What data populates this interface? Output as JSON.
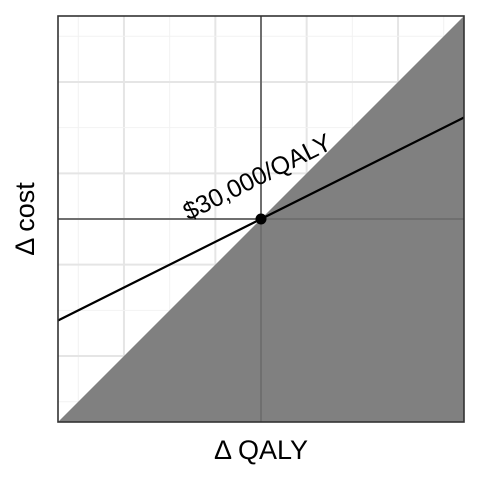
{
  "chart_data": {
    "type": "line",
    "title": "",
    "xlabel": "Δ QALY",
    "ylabel": "Δ cost",
    "xlim": [
      -1,
      1
    ],
    "ylim": [
      -1,
      1
    ],
    "grid": true,
    "shaded_region": {
      "name": "",
      "boundary": [
        {
          "x": -1,
          "y": -1
        },
        {
          "x": 1,
          "y": 1
        }
      ],
      "fill": "#808080"
    },
    "series": [
      {
        "name": "",
        "type": "line",
        "x": [
          -1,
          1
        ],
        "y": [
          -0.5,
          0.5
        ],
        "color": "#000000"
      }
    ],
    "point": {
      "x": 0,
      "y": 0,
      "color": "#000000"
    },
    "annotations": [
      {
        "text": "$30,000/QALY",
        "x": 0,
        "y": 0.17,
        "angle": -26.6
      }
    ]
  }
}
